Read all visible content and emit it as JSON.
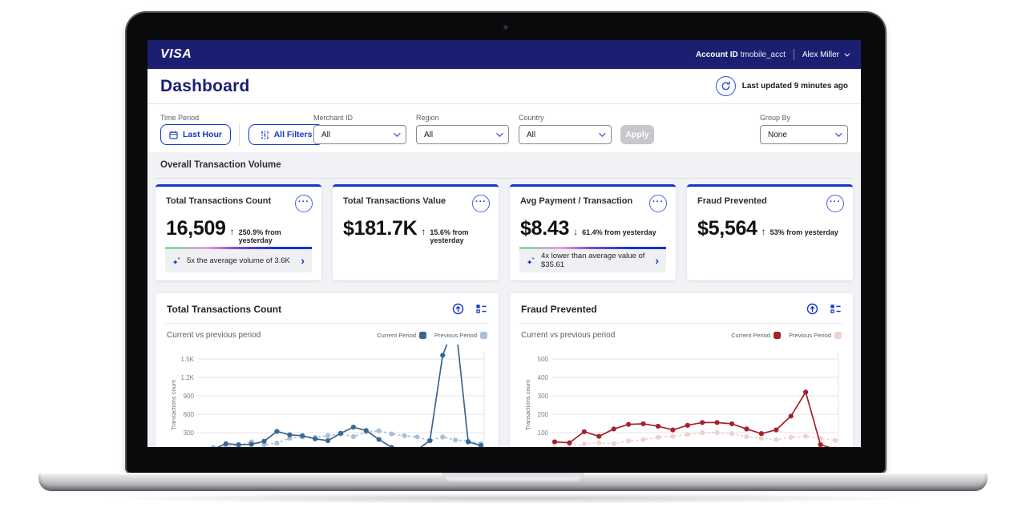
{
  "topbar": {
    "brand": "VISA",
    "account_id_label": "Account ID",
    "account_id_value": "tmobile_acct",
    "user_name": "Alex Miller"
  },
  "header": {
    "title": "Dashboard",
    "last_updated": "Last updated 9 minutes ago"
  },
  "filters": {
    "time_period_label": "Time Period",
    "last_hour_button": "Last Hour",
    "all_filters_button": "All Filters",
    "merchant_label": "Merchant ID",
    "merchant_value": "All",
    "region_label": "Region",
    "region_value": "All",
    "country_label": "Country",
    "country_value": "All",
    "apply_button": "Apply",
    "group_by_label": "Group By",
    "group_by_value": "None"
  },
  "section_title": "Overall Transaction Volume",
  "kpis": [
    {
      "title": "Total Transactions Count",
      "value": "16,509",
      "arrow": "↑",
      "delta": "250.9% from yesterday",
      "insight": "5x the average volume of 3.6K",
      "more": "···",
      "chevron": "›"
    },
    {
      "title": "Total Transactions Value",
      "value": "$181.7K",
      "arrow": "↑",
      "delta": "15.6% from yesterday",
      "more": "···"
    },
    {
      "title": "Avg Payment / Transaction",
      "value": "$8.43",
      "arrow": "↓",
      "delta": "61.4% from yesterday",
      "insight": "4x lower than average value of $35.61",
      "more": "···",
      "chevron": "›"
    },
    {
      "title": "Fraud Prevented",
      "value": "$5,564",
      "arrow": "↑",
      "delta": "53% from yesterday",
      "more": "···"
    }
  ],
  "colors": {
    "brand_navy": "#1a1f71",
    "accent_blue": "#1434cb",
    "page_bg": "#f1f2f5",
    "current_blue": "#39678f",
    "previous_blue": "#a9bfd3",
    "current_red": "#a6222a",
    "previous_red": "#efd2cb"
  },
  "chart_data": [
    {
      "type": "line",
      "title": "Total Transactions Count",
      "subtitle": "Current vs previous period",
      "ylabel": "Transactions count",
      "legend_current": "Current Period",
      "legend_previous": "Previous Period",
      "grid": true,
      "legend_position": "top-right",
      "ylim": [
        0,
        1650
      ],
      "yticks": [
        1500,
        1200,
        900,
        600,
        300,
        0
      ],
      "ytick_labels": [
        "1.5K",
        "1.2K",
        "900",
        "600",
        "300",
        "0"
      ],
      "series": [
        {
          "name": "Previous Period",
          "style": "dashed",
          "color": "#a9bfd3",
          "values": [
            5,
            60,
            75,
            90,
            150,
            105,
            130,
            210,
            230,
            225,
            250,
            280,
            235,
            310,
            330,
            280,
            250,
            230,
            170,
            230,
            180,
            165,
            120
          ]
        },
        {
          "name": "Current Period",
          "style": "solid",
          "color": "#39678f",
          "values": [
            10,
            30,
            120,
            105,
            110,
            160,
            320,
            265,
            250,
            200,
            170,
            290,
            390,
            335,
            190,
            60,
            25,
            20,
            170,
            1560,
            2100,
            150,
            90
          ]
        }
      ]
    },
    {
      "type": "line",
      "title": "Fraud Prevented",
      "subtitle": "Current vs previous period",
      "ylabel": "Transactions count",
      "legend_current": "Current Period",
      "legend_previous": "Previous Period",
      "grid": true,
      "legend_position": "top-right",
      "ylim": [
        0,
        550
      ],
      "yticks": [
        500,
        400,
        300,
        200,
        100,
        0
      ],
      "ytick_labels": [
        "500",
        "400",
        "300",
        "200",
        "100",
        "0"
      ],
      "series": [
        {
          "name": "Previous Period",
          "style": "dashed",
          "color": "#efd2cb",
          "values": [
            18,
            25,
            38,
            45,
            40,
            55,
            62,
            75,
            80,
            90,
            100,
            100,
            95,
            78,
            70,
            62,
            75,
            80,
            70,
            58
          ]
        },
        {
          "name": "Current Period",
          "style": "solid",
          "color": "#a6222a",
          "values": [
            50,
            45,
            105,
            80,
            120,
            145,
            148,
            135,
            115,
            140,
            155,
            155,
            148,
            120,
            95,
            115,
            190,
            320,
            35,
            10
          ]
        }
      ]
    }
  ]
}
